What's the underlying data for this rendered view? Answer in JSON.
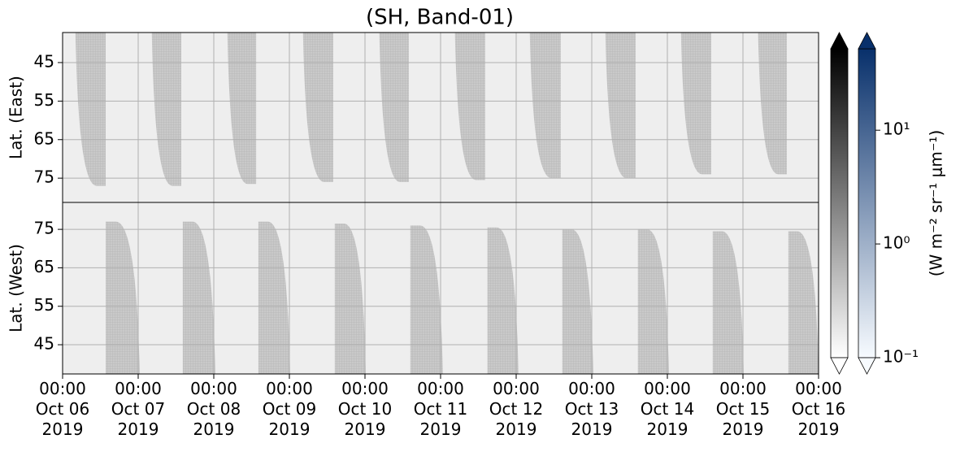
{
  "chart_data": {
    "type": "heatmap",
    "title": "(SH, Band-01)",
    "xlim": [
      0,
      10
    ],
    "xticks": [
      {
        "value": 0,
        "label": "00:00\nOct 06\n2019"
      },
      {
        "value": 1,
        "label": "00:00\nOct 07\n2019"
      },
      {
        "value": 2,
        "label": "00:00\nOct 08\n2019"
      },
      {
        "value": 3,
        "label": "00:00\nOct 09\n2019"
      },
      {
        "value": 4,
        "label": "00:00\nOct 10\n2019"
      },
      {
        "value": 5,
        "label": "00:00\nOct 11\n2019"
      },
      {
        "value": 6,
        "label": "00:00\nOct 12\n2019"
      },
      {
        "value": 7,
        "label": "00:00\nOct 13\n2019"
      },
      {
        "value": 8,
        "label": "00:00\nOct 14\n2019"
      },
      {
        "value": 9,
        "label": "00:00\nOct 15\n2019"
      },
      {
        "value": 10,
        "label": "00:00\nOct 16\n2019"
      }
    ],
    "grid": true,
    "panels": [
      {
        "ylabel": "Lat. (East)",
        "ylim": [
          81.3,
          37.2
        ],
        "yticks": [
          45,
          55,
          65,
          75
        ],
        "lobe_side": "top",
        "lobes": [
          {
            "start": 0.17,
            "end": 0.57,
            "tip": 77
          },
          {
            "start": 1.18,
            "end": 1.57,
            "tip": 77
          },
          {
            "start": 2.18,
            "end": 2.56,
            "tip": 76.5
          },
          {
            "start": 3.18,
            "end": 3.58,
            "tip": 76
          },
          {
            "start": 4.19,
            "end": 4.58,
            "tip": 76
          },
          {
            "start": 5.19,
            "end": 5.59,
            "tip": 75.5
          },
          {
            "start": 6.18,
            "end": 6.59,
            "tip": 75
          },
          {
            "start": 7.18,
            "end": 7.58,
            "tip": 75
          },
          {
            "start": 8.18,
            "end": 8.58,
            "tip": 74
          },
          {
            "start": 9.2,
            "end": 9.58,
            "tip": 74
          }
        ]
      },
      {
        "ylabel": "Lat. (West)",
        "ylim": [
          37.4,
          82
        ],
        "yticks": [
          45,
          55,
          65,
          75
        ],
        "lobe_side": "bottom",
        "lobes": [
          {
            "start": 0.57,
            "end": 1.02,
            "tip": 77
          },
          {
            "start": 1.59,
            "end": 2.02,
            "tip": 77
          },
          {
            "start": 2.59,
            "end": 3.01,
            "tip": 77
          },
          {
            "start": 3.6,
            "end": 4.01,
            "tip": 76.5
          },
          {
            "start": 4.6,
            "end": 5.03,
            "tip": 76
          },
          {
            "start": 5.62,
            "end": 6.03,
            "tip": 75.5
          },
          {
            "start": 6.61,
            "end": 7.02,
            "tip": 75
          },
          {
            "start": 7.61,
            "end": 8.02,
            "tip": 75
          },
          {
            "start": 8.6,
            "end": 9.01,
            "tip": 74.5
          },
          {
            "start": 9.6,
            "end": 10,
            "tip": 74.5
          }
        ]
      }
    ],
    "colorbar_label": "(W m⁻² sr⁻¹ μm⁻¹)",
    "colorbar_scale": "log",
    "colorbar_lim": [
      0.1,
      52
    ],
    "colorbar_ticks": [
      {
        "value": 0.1,
        "label": "10⁻¹"
      },
      {
        "value": 1,
        "label": "10⁰"
      },
      {
        "value": 10,
        "label": "10¹"
      }
    ],
    "colorbars": [
      {
        "colors": [
          "#ffffff",
          "#000000"
        ]
      },
      {
        "colors": [
          "#f7fbff",
          "#08306b"
        ]
      }
    ]
  }
}
